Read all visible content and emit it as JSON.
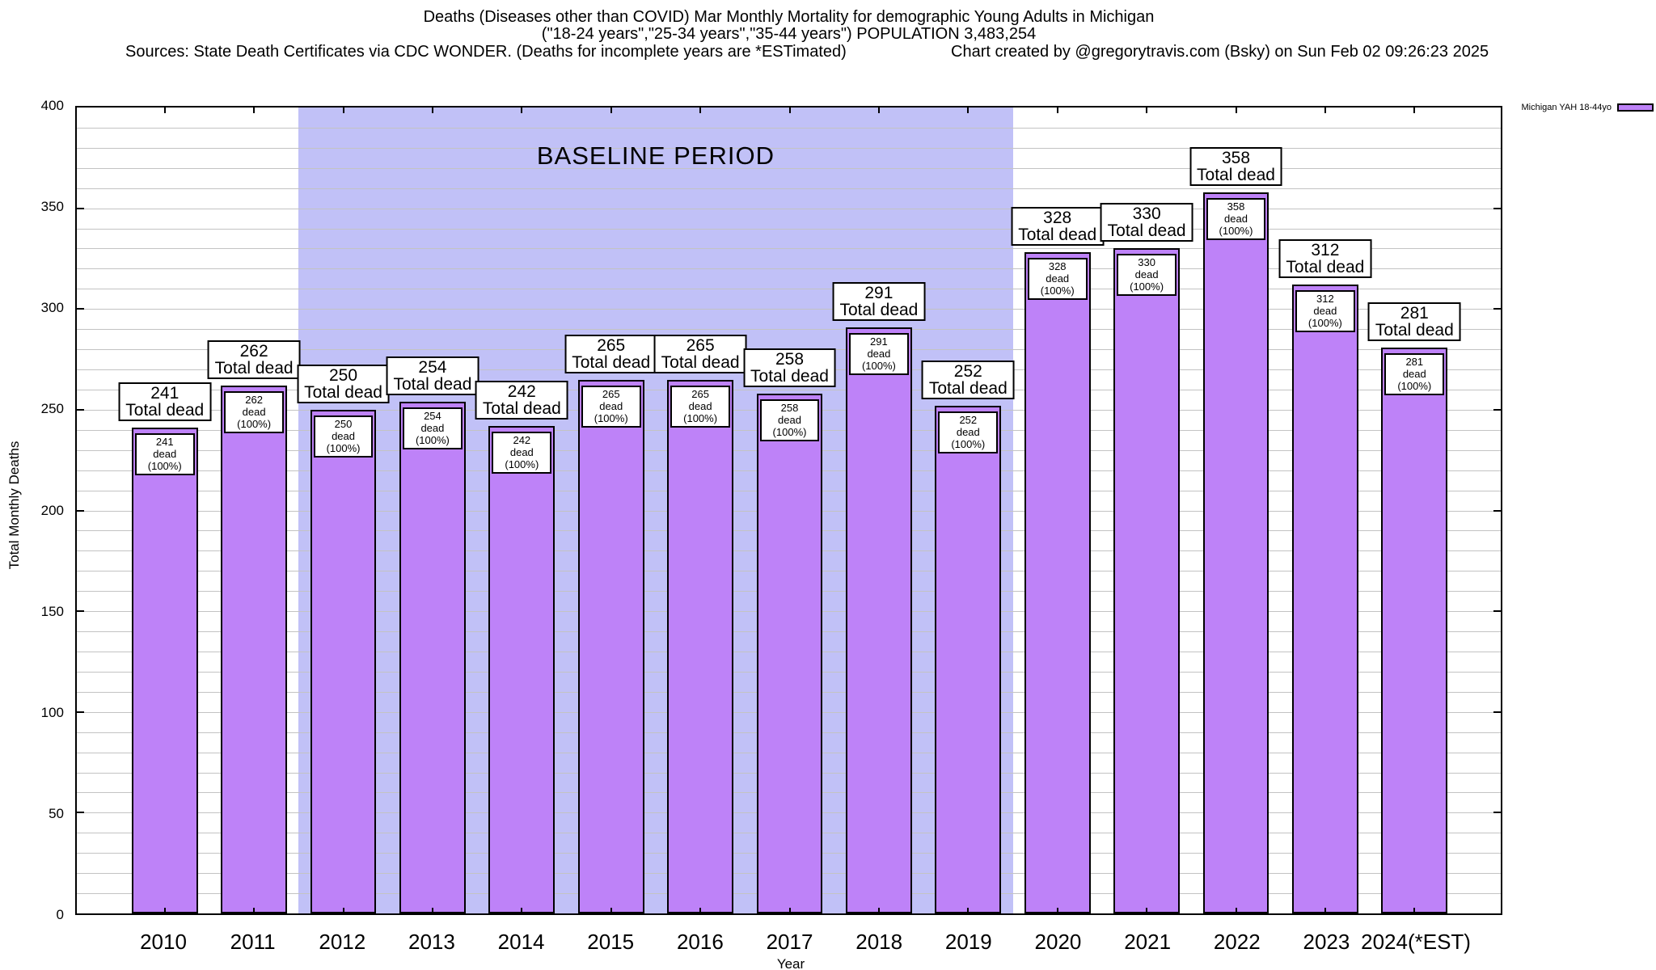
{
  "header": {
    "title_line1": "Deaths (Diseases other than COVID) Mar Monthly Mortality for demographic Young Adults in Michigan",
    "title_line2": "(\"18-24 years\",\"25-34 years\",\"35-44 years\") POPULATION 3,483,254",
    "sources": "Sources: State Death Certificates via CDC WONDER. (Deaths for incomplete years are *ESTimated)",
    "credit": "Chart created by @gregorytravis.com (Bsky) on Sun Feb 02 09:26:23 2025"
  },
  "legend": {
    "label": "Michigan YAH 18-44yo"
  },
  "chart_data": {
    "type": "bar",
    "title": "Deaths (Diseases other than COVID) Mar Monthly Mortality for demographic Young Adults in Michigan",
    "categories": [
      "2010",
      "2011",
      "2012",
      "2013",
      "2014",
      "2015",
      "2016",
      "2017",
      "2018",
      "2019",
      "2020",
      "2021",
      "2022",
      "2023",
      "2024(*EST)"
    ],
    "values": [
      241,
      262,
      250,
      254,
      242,
      265,
      265,
      258,
      291,
      252,
      328,
      330,
      358,
      312,
      281
    ],
    "series_name": "Michigan YAH 18-44yo",
    "outer_label_suffix": "Total dead",
    "inner_label_suffix": "dead (100%)",
    "xlabel": "Year",
    "ylabel": "Total Monthly Deaths",
    "ylim": [
      0,
      400
    ],
    "ytick_step": 50,
    "grid_step": 10,
    "grid": "horizontal only",
    "legend_position": "top-right outside plot",
    "baseline_period": {
      "label": "BASELINE PERIOD",
      "from_category": "2012",
      "to_category": "2019"
    },
    "colors": {
      "bar_fill": "#be82f8",
      "bar_border": "#000000",
      "baseline_bg": "#c1c1f7",
      "grid": "#c3c3c3",
      "text": "#000000",
      "background": "#ffffff"
    }
  }
}
